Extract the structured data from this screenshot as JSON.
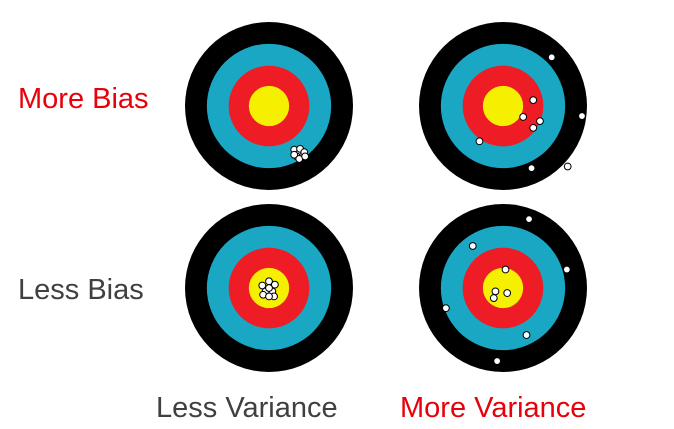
{
  "labels": {
    "more_bias": "More Bias",
    "less_bias": "Less Bias",
    "less_variance": "Less Variance",
    "more_variance": "More Variance"
  },
  "colors": {
    "emphasis_text": "#e8000b",
    "normal_text": "#404040",
    "ring_outer": "#000000",
    "ring_2": "#1aa7c4",
    "ring_3": "#ee1c24",
    "ring_center": "#f5ef00",
    "shot_fill": "#ffffff",
    "shot_stroke": "#000000"
  },
  "targets": [
    {
      "id": "more-bias-less-variance",
      "row": "more_bias",
      "col": "less_variance",
      "shots": [
        [
          0.3,
          0.52
        ],
        [
          0.36,
          0.56
        ],
        [
          0.4,
          0.6
        ],
        [
          0.33,
          0.6
        ],
        [
          0.37,
          0.51
        ],
        [
          0.42,
          0.55
        ],
        [
          0.3,
          0.58
        ],
        [
          0.36,
          0.63
        ],
        [
          0.43,
          0.6
        ]
      ]
    },
    {
      "id": "more-bias-more-variance",
      "row": "more_bias",
      "col": "more_variance",
      "shots": [
        [
          0.58,
          -0.58
        ],
        [
          0.36,
          -0.07
        ],
        [
          0.24,
          0.13
        ],
        [
          0.36,
          0.26
        ],
        [
          0.44,
          0.18
        ],
        [
          -0.28,
          0.42
        ],
        [
          0.34,
          0.74
        ],
        [
          0.94,
          0.12
        ],
        [
          0.77,
          0.72
        ]
      ]
    },
    {
      "id": "less-bias-less-variance",
      "row": "less_bias",
      "col": "less_variance",
      "shots": [
        [
          -0.08,
          -0.03
        ],
        [
          0.0,
          -0.08
        ],
        [
          0.07,
          -0.04
        ],
        [
          -0.04,
          0.04
        ],
        [
          0.04,
          0.04
        ],
        [
          0.0,
          0.0
        ],
        [
          -0.07,
          0.08
        ],
        [
          0.06,
          0.1
        ],
        [
          0.0,
          0.1
        ]
      ]
    },
    {
      "id": "less-bias-more-variance",
      "row": "less_bias",
      "col": "more_variance",
      "shots": [
        [
          0.31,
          -0.82
        ],
        [
          -0.36,
          -0.5
        ],
        [
          0.03,
          -0.22
        ],
        [
          -0.09,
          0.04
        ],
        [
          0.05,
          0.06
        ],
        [
          -0.11,
          0.12
        ],
        [
          0.76,
          -0.22
        ],
        [
          -0.68,
          0.24
        ],
        [
          0.28,
          0.56
        ],
        [
          -0.07,
          0.87
        ]
      ]
    }
  ]
}
